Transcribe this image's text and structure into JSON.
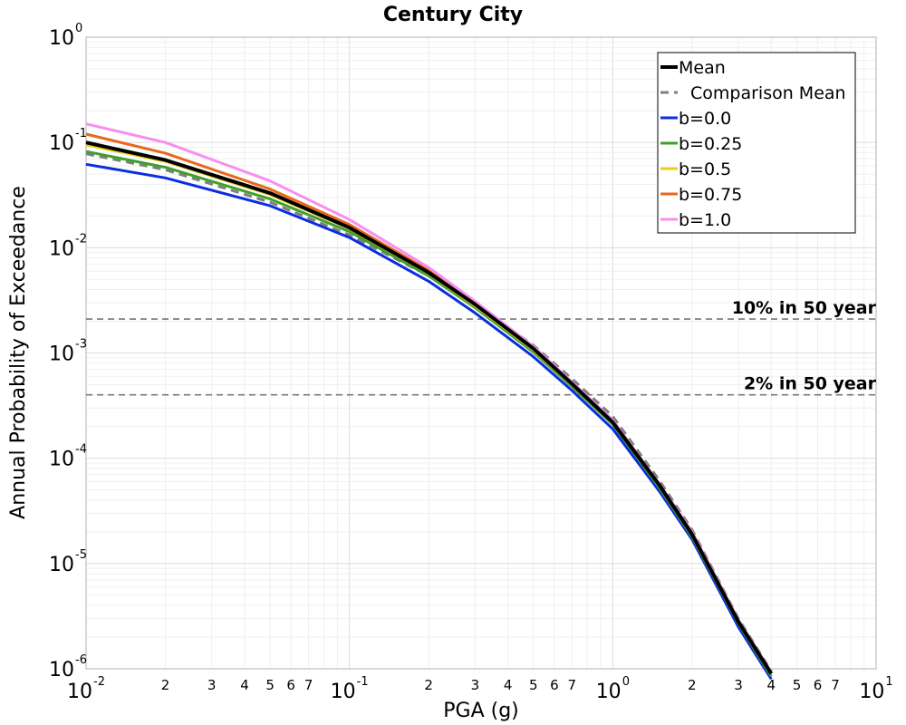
{
  "chart_data": {
    "type": "line",
    "title": "Century City",
    "xlabel": "PGA (g)",
    "ylabel": "Annual Probability of Exceedance",
    "xscale": "log",
    "yscale": "log",
    "xlim": [
      0.01,
      10
    ],
    "ylim": [
      1e-06,
      1
    ],
    "grid": true,
    "legend_position": "top-right",
    "x_major_ticks": [
      {
        "base": "10",
        "exp": "-2"
      },
      {
        "base": "10",
        "exp": "-1"
      },
      {
        "base": "10",
        "exp": "0"
      },
      {
        "base": "10",
        "exp": "1"
      }
    ],
    "y_major_ticks": [
      {
        "base": "10",
        "exp": "-6"
      },
      {
        "base": "10",
        "exp": "-5"
      },
      {
        "base": "10",
        "exp": "-4"
      },
      {
        "base": "10",
        "exp": "-3"
      },
      {
        "base": "10",
        "exp": "-2"
      },
      {
        "base": "10",
        "exp": "-1"
      },
      {
        "base": "10",
        "exp": "0"
      }
    ],
    "x_minor_tick_labels": [
      "2",
      "3",
      "4",
      "5",
      "6",
      "7"
    ],
    "reference_lines": [
      {
        "label": "10% in 50 year",
        "y": 0.0021,
        "color": "#777777"
      },
      {
        "label": "2% in 50 year",
        "y": 0.0004,
        "color": "#777777"
      }
    ],
    "x": [
      0.01,
      0.02,
      0.05,
      0.1,
      0.2,
      0.3,
      0.5,
      0.7,
      1.0,
      1.5,
      2.0,
      3.0,
      4.0
    ],
    "series": [
      {
        "name": "Mean",
        "color": "#000000",
        "width": 4,
        "dash": "",
        "values": [
          0.1,
          0.068,
          0.033,
          0.0155,
          0.0058,
          0.0029,
          0.0011,
          0.00051,
          0.00022,
          5.6e-05,
          1.9e-05,
          2.8e-06,
          9e-07
        ]
      },
      {
        "name": "Comparison Mean",
        "color": "#7f7f7f",
        "width": 3,
        "dash": "9,6",
        "values": [
          0.078,
          0.055,
          0.027,
          0.0132,
          0.0054,
          0.0029,
          0.00118,
          0.00057,
          0.00025,
          6.2e-05,
          2.1e-05,
          3e-06,
          9.5e-07
        ]
      },
      {
        "name": "b=0.0",
        "color": "#0a2ee0",
        "width": 3,
        "dash": "",
        "values": [
          0.062,
          0.046,
          0.025,
          0.0125,
          0.0048,
          0.0024,
          0.00092,
          0.00044,
          0.00019,
          4.9e-05,
          1.7e-05,
          2.5e-06,
          8e-07
        ]
      },
      {
        "name": "b=0.25",
        "color": "#3fa02a",
        "width": 3,
        "dash": "",
        "values": [
          0.082,
          0.058,
          0.029,
          0.0142,
          0.0054,
          0.0027,
          0.00102,
          0.00048,
          0.00021,
          5.3e-05,
          1.8e-05,
          2.7e-06,
          8.5e-07
        ]
      },
      {
        "name": "b=0.5",
        "color": "#e8cf19",
        "width": 3,
        "dash": "",
        "values": [
          0.095,
          0.066,
          0.032,
          0.0152,
          0.0057,
          0.0028,
          0.00107,
          0.0005,
          0.00022,
          5.5e-05,
          1.9e-05,
          2.8e-06,
          9e-07
        ]
      },
      {
        "name": "b=0.75",
        "color": "#e8681a",
        "width": 3,
        "dash": "",
        "values": [
          0.12,
          0.079,
          0.036,
          0.0166,
          0.0061,
          0.003,
          0.00112,
          0.00052,
          0.00023,
          5.7e-05,
          2e-05,
          2.9e-06,
          9.2e-07
        ]
      },
      {
        "name": "b=1.0",
        "color": "#f78ef0",
        "width": 3,
        "dash": "",
        "values": [
          0.15,
          0.1,
          0.043,
          0.0185,
          0.0065,
          0.0031,
          0.00115,
          0.00053,
          0.00023,
          5.7e-05,
          2e-05,
          2.9e-06,
          9.2e-07
        ]
      }
    ]
  }
}
